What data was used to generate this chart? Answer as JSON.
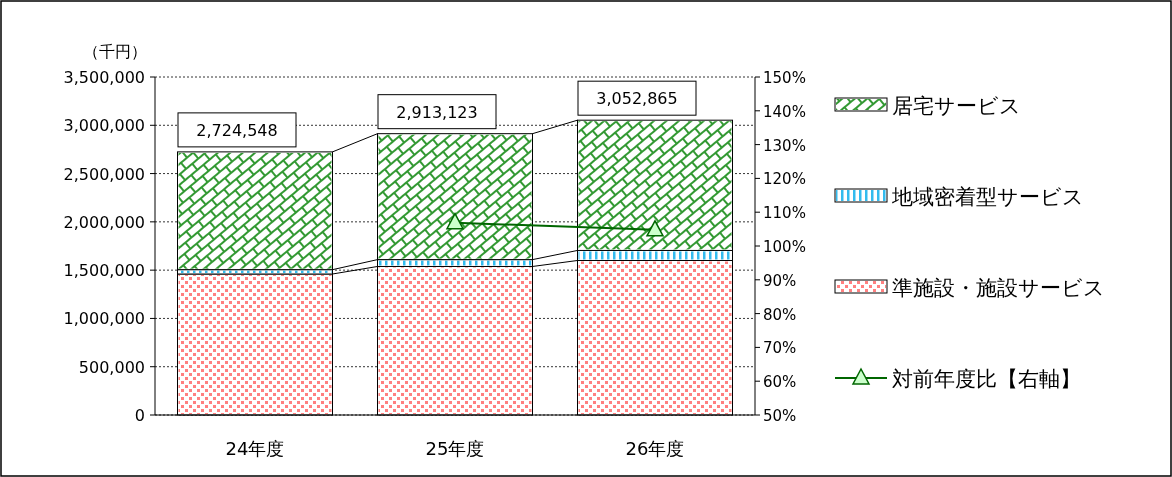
{
  "chart_data": {
    "type": "bar",
    "stacked": true,
    "categories": [
      "24年度",
      "25年度",
      "26年度"
    ],
    "ylabel": "（千円）",
    "series": [
      {
        "name": "準施設・施設サービス",
        "color": "#ff8080",
        "values": [
          1460000,
          1538000,
          1600000
        ]
      },
      {
        "name": "地域密着型サービス",
        "color": "#33bbee",
        "values": [
          45000,
          71000,
          104000
        ]
      },
      {
        "name": "居宅サービス",
        "color": "#339933",
        "values": [
          1219548,
          1304123,
          1348865
        ]
      },
      {
        "name": "対前年度比【右軸】",
        "type": "line",
        "axis": "y2",
        "color": "#006600",
        "marker": "triangle",
        "values": [
          null,
          106.9,
          104.8
        ]
      }
    ],
    "totals": [
      "2,724,548",
      "2,913,123",
      "3,052,865"
    ],
    "ylim": [
      0,
      3500000
    ],
    "yticks": [
      0,
      {
        "value": 500000,
        "label": "500,000"
      },
      {
        "value": 1000000,
        "label": "1,000,000"
      },
      {
        "value": 1500000,
        "label": "1,500,000"
      },
      {
        "value": 2000000,
        "label": "2,000,000"
      },
      {
        "value": 2500000,
        "label": "2,500,000"
      },
      {
        "value": 3000000,
        "label": "3,000,000"
      },
      {
        "value": 3500000,
        "label": "3,500,000"
      }
    ],
    "y2lim": [
      50,
      150
    ],
    "y2ticks": [
      {
        "value": 50,
        "label": "50%"
      },
      {
        "value": 60,
        "label": "60%"
      },
      {
        "value": 70,
        "label": "70%"
      },
      {
        "value": 80,
        "label": "80%"
      },
      {
        "value": 90,
        "label": "90%"
      },
      {
        "value": 100,
        "label": "100%"
      },
      {
        "value": 110,
        "label": "110%"
      },
      {
        "value": 120,
        "label": "120%"
      },
      {
        "value": 130,
        "label": "130%"
      },
      {
        "value": 140,
        "label": "140%"
      },
      {
        "value": 150,
        "label": "150%"
      }
    ],
    "grid": "y",
    "legend": "right"
  }
}
